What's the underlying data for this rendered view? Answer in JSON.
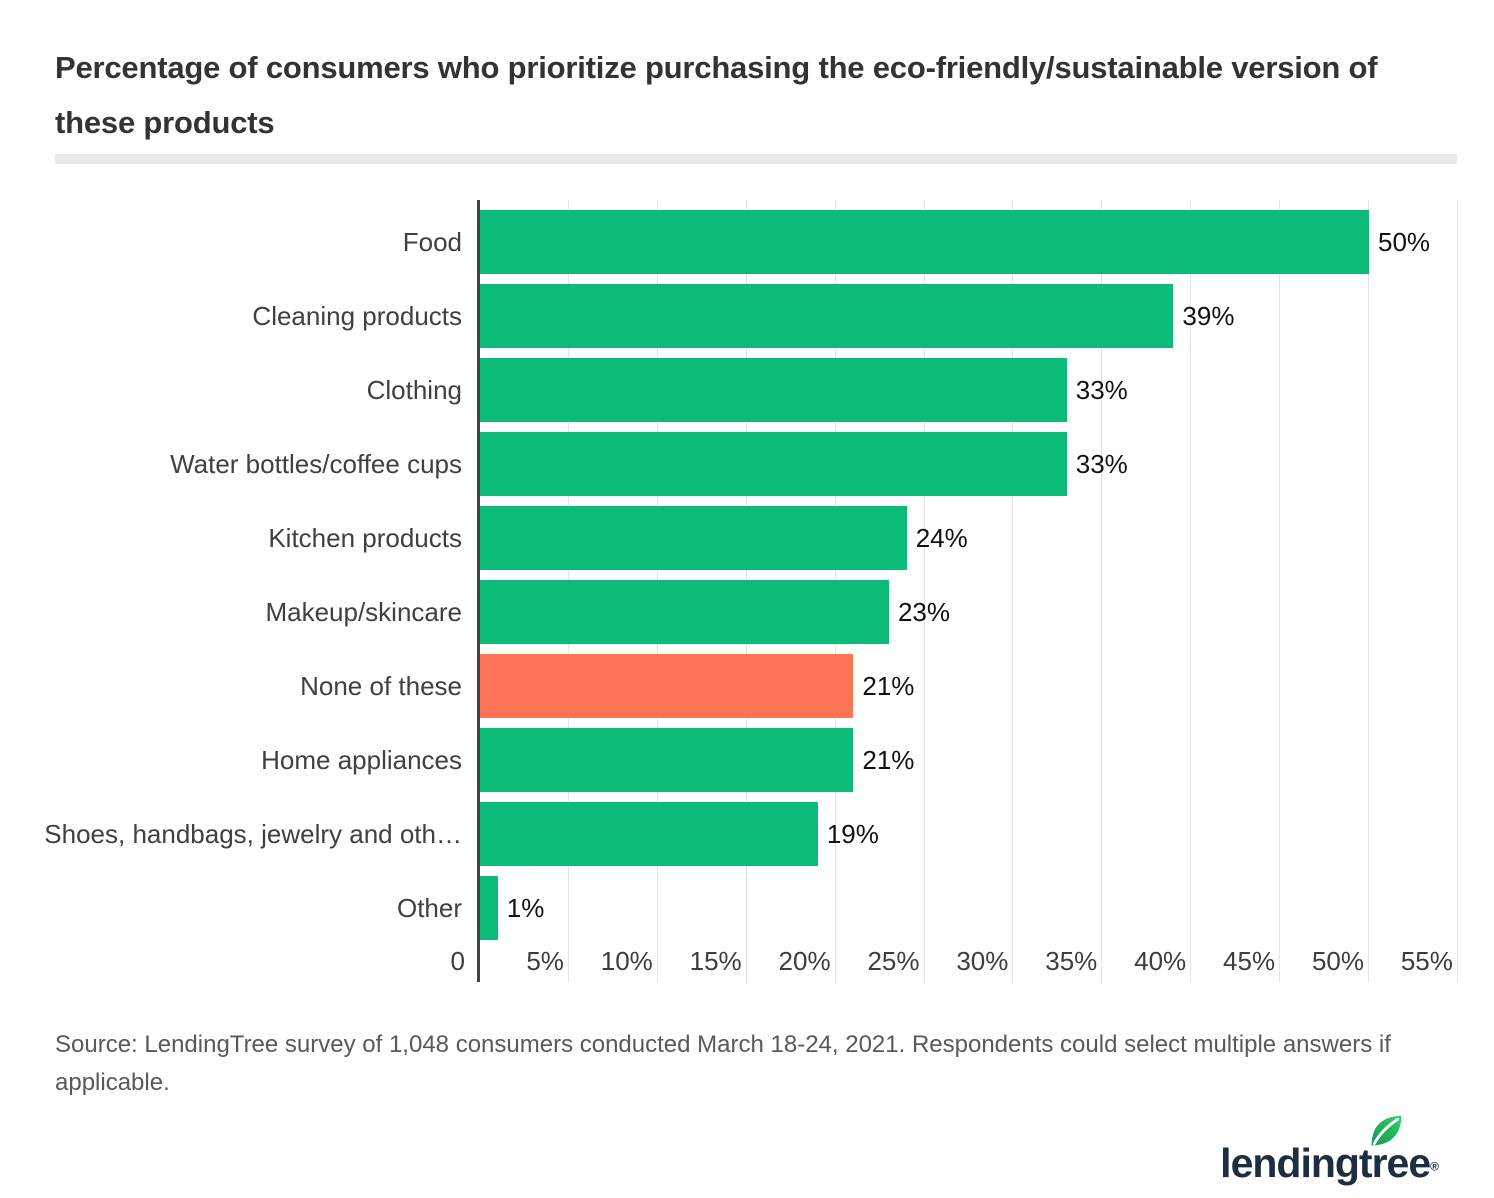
{
  "title": "Percentage of consumers who prioritize purchasing the eco-friendly/sustainable version of these products",
  "source_note": "Source: LendingTree survey of 1,048 consumers conducted March 18-24, 2021. Respondents could select multiple answers if applicable.",
  "logo": {
    "text": "lendingtree",
    "registered_mark": "®"
  },
  "colors": {
    "bar_green": "#0dbc78",
    "bar_orange": "#fb7455",
    "axis": "#424242",
    "gridline": "#e4e4e4",
    "divider": "#e8e8e8",
    "title_text": "#333333",
    "category_text": "#404040",
    "value_text": "#111111",
    "source_text": "#595959",
    "logo_navy": "#1e2d40",
    "leaf_green_dark": "#1b9552",
    "leaf_green_light": "#2fd368"
  },
  "chart_data": {
    "type": "bar",
    "orientation": "horizontal",
    "title": "Percentage of consumers who prioritize purchasing the eco-friendly/sustainable version of these products",
    "xlabel": "",
    "ylabel": "",
    "xlim": [
      0,
      55
    ],
    "grid": true,
    "categories": [
      "Food",
      "Cleaning products",
      "Clothing",
      "Water bottles/coffee cups",
      "Kitchen products",
      "Makeup/skincare",
      "None of these",
      "Home appliances",
      "Shoes, handbags, jewelry and oth…",
      "Other"
    ],
    "values": [
      50,
      39,
      33,
      33,
      24,
      23,
      21,
      21,
      19,
      1
    ],
    "value_labels": [
      "50%",
      "39%",
      "33%",
      "33%",
      "24%",
      "23%",
      "21%",
      "21%",
      "19%",
      "1%"
    ],
    "highlight_index": 6,
    "x_ticks": [
      {
        "value": 0,
        "label": "0"
      },
      {
        "value": 5,
        "label": "5%"
      },
      {
        "value": 10,
        "label": "10%"
      },
      {
        "value": 15,
        "label": "15%"
      },
      {
        "value": 20,
        "label": "20%"
      },
      {
        "value": 25,
        "label": "25%"
      },
      {
        "value": 30,
        "label": "30%"
      },
      {
        "value": 35,
        "label": "35%"
      },
      {
        "value": 40,
        "label": "40%"
      },
      {
        "value": 45,
        "label": "45%"
      },
      {
        "value": 50,
        "label": "50%"
      },
      {
        "value": 55,
        "label": "55%"
      }
    ]
  }
}
